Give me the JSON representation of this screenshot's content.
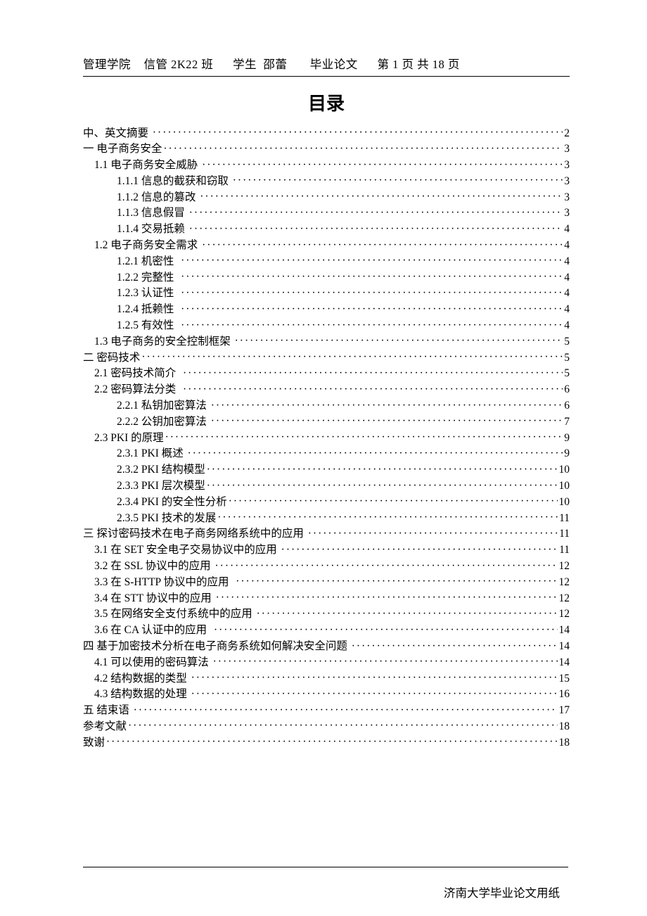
{
  "header": {
    "college": "管理学院",
    "class_label": "信管 2K22 班",
    "student_label": "学生",
    "student_name": "邵蕾",
    "doc_type": "毕业论文",
    "page_label": "第 1 页 共 18 页"
  },
  "title": "目录",
  "toc": [
    {
      "indent": 0,
      "label": "中、英文摘要 ",
      "page": "2"
    },
    {
      "indent": 0,
      "label": "一 电子商务安全",
      "page": "3"
    },
    {
      "indent": 1,
      "label": "1.1 电子商务安全威胁 ",
      "page": "3"
    },
    {
      "indent": 2,
      "label": "1.1.1 信息的截获和窃取 ",
      "page": "3"
    },
    {
      "indent": 2,
      "label": "1.1.2 信息的篡改 ",
      "page": "3"
    },
    {
      "indent": 2,
      "label": "1.1.3 信息假冒 ",
      "page": "3"
    },
    {
      "indent": 2,
      "label": "1.1.4 交易抵赖 ",
      "page": "4"
    },
    {
      "indent": 1,
      "label": "1.2 电子商务安全需求 ",
      "page": "4"
    },
    {
      "indent": 2,
      "label": "1.2.1 机密性  ",
      "page": "4"
    },
    {
      "indent": 2,
      "label": "1.2.2 完整性  ",
      "page": "4"
    },
    {
      "indent": 2,
      "label": "1.2.3 认证性  ",
      "page": "4"
    },
    {
      "indent": 2,
      "label": "1.2.4 抵赖性  ",
      "page": "4"
    },
    {
      "indent": 2,
      "label": "1.2.5 有效性  ",
      "page": "4"
    },
    {
      "indent": 1,
      "label": "1.3 电子商务的安全控制框架 ",
      "page": "5"
    },
    {
      "indent": 0,
      "label": "二 密码技术",
      "page": "5"
    },
    {
      "indent": 1,
      "label": "2.1 密码技术简介  ",
      "page": "5"
    },
    {
      "indent": 1,
      "label": "2.2 密码算法分类  ",
      "page": "6"
    },
    {
      "indent": 2,
      "label": "2.2.1 私钥加密算法 ",
      "page": "6"
    },
    {
      "indent": 2,
      "label": "2.2.2 公钥加密算法 ",
      "page": "7"
    },
    {
      "indent": 1,
      "label": "2.3 PKI 的原理",
      "page": "9"
    },
    {
      "indent": 2,
      "label": "2.3.1 PKI 概述 ",
      "page": "9"
    },
    {
      "indent": 2,
      "label": "2.3.2 PKI 结构模型",
      "page": "10"
    },
    {
      "indent": 2,
      "label": "2.3.3 PKI 层次模型",
      "page": "10"
    },
    {
      "indent": 2,
      "label": "2.3.4 PKI 的安全性分析",
      "page": "10"
    },
    {
      "indent": 2,
      "label": "2.3.5 PKI 技术的发展",
      "page": "11"
    },
    {
      "indent": 0,
      "label": "三 探讨密码技术在电子商务网络系统中的应用 ",
      "page": "11"
    },
    {
      "indent": 1,
      "label": "3.1 在 SET 安全电子交易协议中的应用 ",
      "page": "11"
    },
    {
      "indent": 1,
      "label": "3.2 在 SSL 协议中的应用 ",
      "page": "12"
    },
    {
      "indent": 1,
      "label": "3.3 在 S-HTTP 协议中的应用  ",
      "page": "12"
    },
    {
      "indent": 1,
      "label": "3.4 在 STT 协议中的应用 ",
      "page": "12"
    },
    {
      "indent": 1,
      "label": "3.5 在网络安全支付系统中的应用 ",
      "page": "12"
    },
    {
      "indent": 1,
      "label": "3.6 在 CA 认证中的应用  ",
      "page": "14"
    },
    {
      "indent": 0,
      "label": "四 基于加密技术分析在电子商务系统如何解决安全问题 ",
      "page": "14"
    },
    {
      "indent": 1,
      "label": "4.1 可以使用的密码算法 ",
      "page": "14"
    },
    {
      "indent": 1,
      "label": "4.2 结构数据的类型 ",
      "page": "15"
    },
    {
      "indent": 1,
      "label": "4.3 结构数据的处理 ",
      "page": "16"
    },
    {
      "indent": 0,
      "label": "五 结束语 ",
      "page": "17"
    },
    {
      "indent": 0,
      "label": "参考文献",
      "page": "18"
    },
    {
      "indent": 0,
      "label": "致谢",
      "page": "18"
    }
  ],
  "footer": "济南大学毕业论文用纸"
}
